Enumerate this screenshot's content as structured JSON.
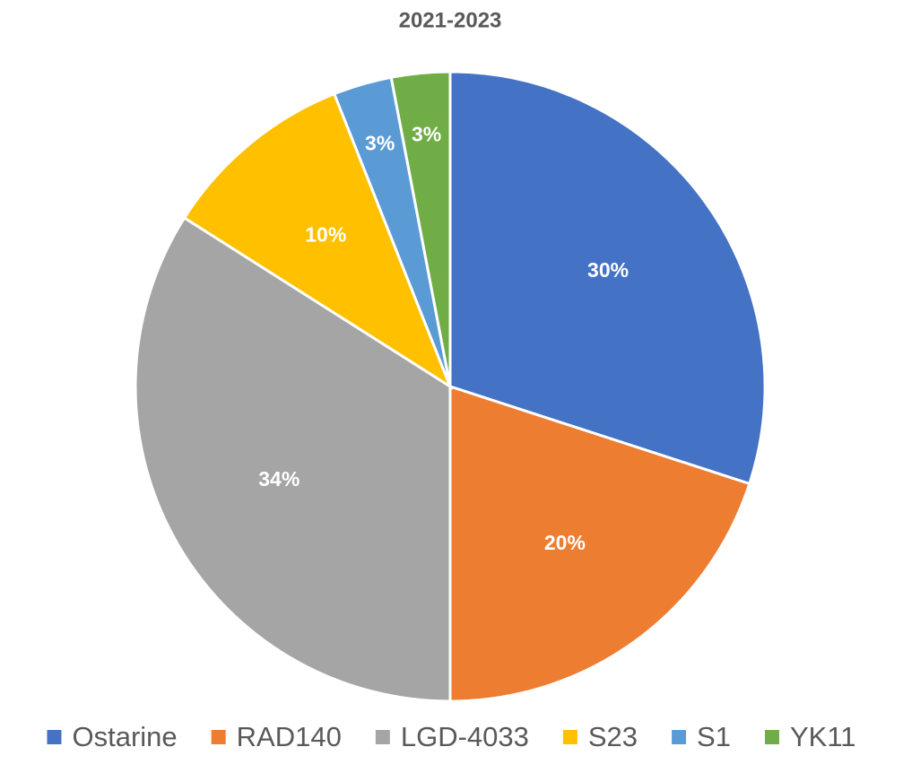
{
  "chart_data": {
    "type": "pie",
    "title": "2021-2023",
    "categories": [
      "Ostarine",
      "RAD140",
      "LGD-4033",
      "S23",
      "S1",
      "YK11"
    ],
    "values": [
      30,
      20,
      34,
      10,
      3,
      3
    ],
    "value_labels": [
      "30%",
      "20%",
      "34%",
      "10%",
      "3%",
      "3%"
    ],
    "colors": [
      "#4472c4",
      "#ed7d31",
      "#a5a5a5",
      "#ffc000",
      "#5b9bd5",
      "#70ad47"
    ],
    "legend": "bottom"
  }
}
